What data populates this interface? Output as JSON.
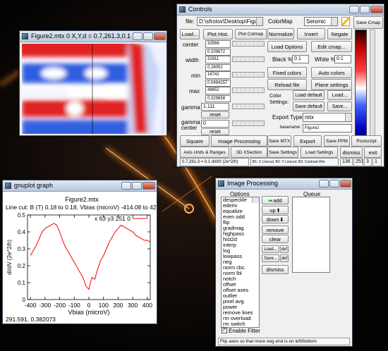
{
  "figure_window": {
    "title": "Figure2.mtx 0 X,Y,d = 0.7,261.3,0.1 (8"
  },
  "controls": {
    "title": "Controls",
    "labels": [
      "file:",
      "ColorMap",
      "center",
      "width",
      "min",
      "max",
      "gamma",
      "gamma center",
      "Black %",
      "White %",
      "Color Settings:",
      "Export Type:",
      "basename:"
    ],
    "inputs": [
      "D:\\sfrolov\\Desktop\\Figure:",
      "Seismic",
      "32566",
      "31911",
      "16741",
      "48652",
      "1.111",
      "0",
      "0.1",
      "0.1",
      "mtx",
      "Figure2"
    ],
    "slider_values": [
      "0.109672",
      "0.26052",
      "0.0494157",
      "0.329658"
    ],
    "buttons": [
      "Save Cmap",
      "Load...",
      "Plot Hist.",
      "Plot Colmap",
      "Normalize",
      "Invert",
      "Negate",
      "Load Options",
      "Edit cmap...",
      "Fixed colors",
      "Auto colors",
      "Reload file",
      "Plane settings",
      "Load default",
      "Load...",
      "Save default",
      "Save...",
      "Square",
      "Image Processing",
      "Save MTX",
      "Export",
      "Save PPM",
      "Postscript",
      "Axis Units & Ranges",
      "3D XSection",
      "Save Settings",
      "Load Settings",
      "dismiss",
      "exit",
      "reset",
      "reset"
    ],
    "status": [
      "0.7,261.3 = 0.1 dI/dV (2e^2/h)",
      "B1: X Linecut; B2: Y Linecut; B3: Contrast Win",
      "136",
      "251",
      "3",
      "1"
    ]
  },
  "gnuplot_window": {
    "title": "gnuplot graph",
    "cursor": "291.591, 0.382073"
  },
  "chart_data": {
    "type": "line",
    "title": "Figure2.mtx",
    "subtitle": "Line cut: B (T) 0.18 to 0.18, Vbias (microV) -414.08 to 42",
    "x_label": "Vbias (microV)",
    "y_label": "dI/dV (2e^2/h)",
    "x": [
      -400,
      -380,
      -360,
      -340,
      -320,
      -300,
      -280,
      -260,
      -240,
      -220,
      -200,
      -180,
      -160,
      -140,
      -120,
      -100,
      -80,
      -60,
      -40,
      -20,
      0,
      20,
      40,
      60,
      80,
      100,
      120,
      140,
      160,
      180,
      200,
      220,
      240,
      260,
      280,
      300,
      320,
      340,
      360,
      380,
      400,
      420
    ],
    "series": [
      {
        "name": "x 63 y3 251 0",
        "color": "#ff0000",
        "values": [
          0.26,
          0.29,
          0.32,
          0.36,
          0.4,
          0.42,
          0.43,
          0.44,
          0.45,
          0.44,
          0.4,
          0.35,
          0.31,
          0.28,
          0.25,
          0.22,
          0.19,
          0.16,
          0.13,
          0.08,
          0.06,
          0.13,
          0.12,
          0.18,
          0.23,
          0.26,
          0.3,
          0.34,
          0.37,
          0.4,
          0.42,
          0.44,
          0.43,
          0.42,
          0.41,
          0.4,
          0.38,
          0.37,
          0.36,
          0.35,
          0.35,
          0.34
        ]
      }
    ],
    "xlim": [
      -420,
      420
    ],
    "ylim": [
      0,
      0.5
    ],
    "xticks": [
      -400,
      -300,
      -200,
      -100,
      0,
      100,
      200,
      300,
      400
    ],
    "yticks": [
      0,
      0.1,
      0.2,
      0.3,
      0.4,
      0.5
    ]
  },
  "image_processing": {
    "title": "Image Processing",
    "options_label": "Options",
    "queue_label": "Queue",
    "options": [
      "despeckle",
      "ederiv",
      "equalize",
      "even odd",
      "flip",
      "gradmag",
      "highpass",
      "hist2d",
      "interp",
      "log",
      "lowpass",
      "neg",
      "norm cbc",
      "norm lbl",
      "notch",
      "offset",
      "offset axes",
      "outlier",
      "pixel avg",
      "power",
      "remove lines",
      "rm overload",
      "rm switch"
    ],
    "buttons": [
      "add",
      "up",
      "down",
      "remove",
      "clear",
      "Load...",
      "def",
      "Save...",
      "def",
      "dismiss"
    ],
    "checkbox": "Enable Filter",
    "status": "Flip axes so that more neg end is on left/bottom"
  }
}
